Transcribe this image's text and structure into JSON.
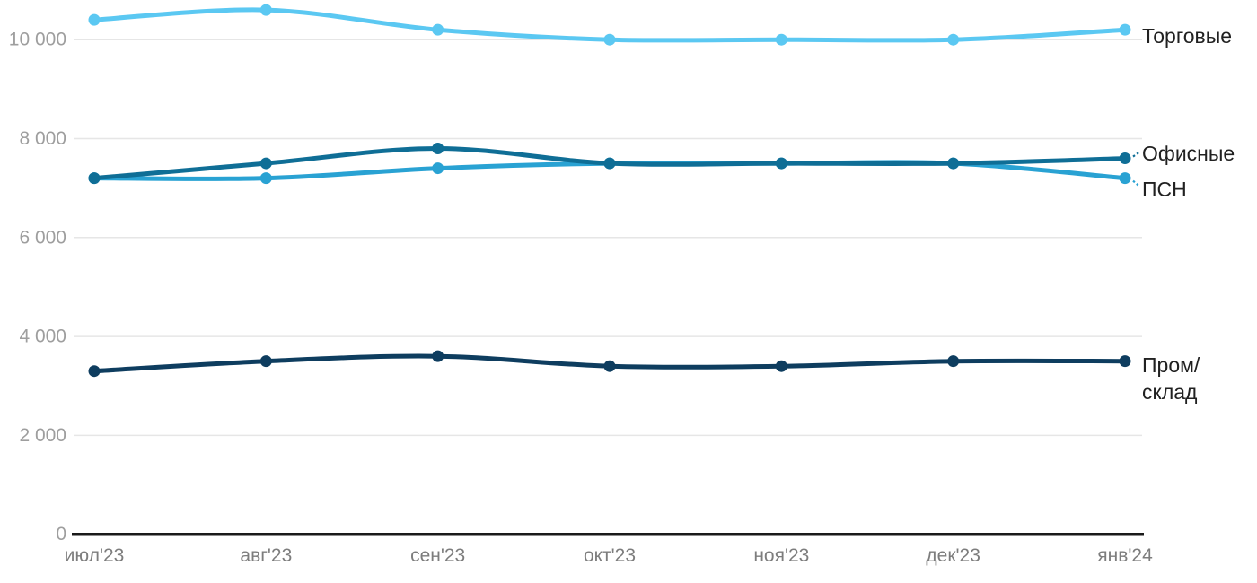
{
  "chart_data": {
    "type": "line",
    "title": "",
    "xlabel": "",
    "ylabel": "",
    "grid": "horizontal",
    "legend_position": "right-of-line-ends",
    "categories": [
      "июл'23",
      "авг'23",
      "сен'23",
      "окт'23",
      "ноя'23",
      "дек'23",
      "янв'24"
    ],
    "series": [
      {
        "name": "Торговые",
        "color": "#5BC8F2",
        "values": [
          10400,
          10600,
          10200,
          10000,
          10000,
          10000,
          10200
        ],
        "label_lines": [
          "Торговые"
        ],
        "leader": "none"
      },
      {
        "name": "Офисные",
        "color": "#0F6E96",
        "values": [
          7200,
          7500,
          7800,
          7500,
          7500,
          7500,
          7600
        ],
        "label_lines": [
          "Офисные"
        ],
        "leader": "up"
      },
      {
        "name": "ПСН",
        "color": "#29A2D3",
        "values": [
          7200,
          7200,
          7400,
          7500,
          7500,
          7500,
          7200
        ],
        "label_lines": [
          "ПСН"
        ],
        "leader": "down"
      },
      {
        "name": "Пром/склад",
        "color": "#0E3D5F",
        "values": [
          3300,
          3500,
          3600,
          3400,
          3400,
          3500,
          3500
        ],
        "label_lines": [
          "Пром/",
          "склад"
        ],
        "leader": "none"
      }
    ],
    "y_ticks": [
      {
        "value": 0,
        "label": "0"
      },
      {
        "value": 2000,
        "label": "2 000"
      },
      {
        "value": 4000,
        "label": "4 000"
      },
      {
        "value": 6000,
        "label": "6 000"
      },
      {
        "value": 8000,
        "label": "8 000"
      },
      {
        "value": 10000,
        "label": "10 000"
      }
    ],
    "ylim": [
      0,
      11000
    ]
  },
  "colors": {
    "background": "#ffffff",
    "grid_line": "#e6e6e6",
    "axis_line": "#1a1a1a",
    "y_tick_text": "#9e9e9e",
    "x_tick_text": "#7d7d7d",
    "series_label_text": "#212121"
  }
}
